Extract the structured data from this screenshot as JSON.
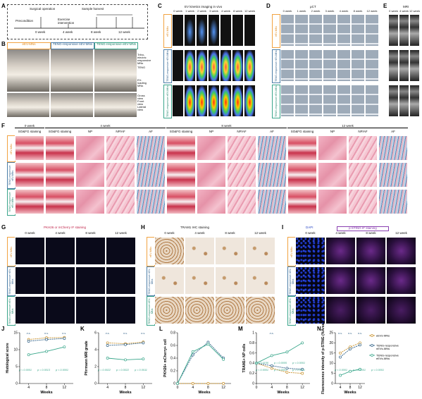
{
  "panelA": {
    "letter": "A",
    "surgical": "Surgical operation",
    "exercise": "Exercise intervention",
    "harvest": "Sample harvest",
    "precondition": "Precondition",
    "timepoints": [
      "0 week",
      "4 week",
      "8 week",
      "12 week"
    ]
  },
  "panelB": {
    "letter": "B",
    "groups": [
      "eEV-MNs",
      "TENG-responsive nEV-MNs",
      "TENG-responsive eEV-MNs"
    ],
    "notes": [
      "Tribo-electric responsive MNs",
      "TENG",
      "EV-loading MNs"
    ],
    "view_labels": [
      "Gross view",
      "Front view",
      "Lateral view"
    ]
  },
  "panelC": {
    "letter": "C",
    "title": "EV kinetics imaging in vivo",
    "columns": [
      "0 week",
      "1 week",
      "2 week",
      "3 week",
      "4 week",
      "8 week",
      "12 week"
    ]
  },
  "panelD": {
    "letter": "D",
    "title": "μCT",
    "columns": [
      "0 week",
      "1 week",
      "2 week",
      "3 week",
      "4 week",
      "8 week",
      "12 week"
    ]
  },
  "panelE": {
    "letter": "E",
    "title": "MRI",
    "columns": [
      "0 week",
      "4 week",
      "12 week"
    ]
  },
  "rowGroups": [
    "eEV-MNs",
    "TENG-responsive nEV-MNs",
    "TENG-responsive eEV-MNs"
  ],
  "panelF": {
    "letter": "F",
    "periods": [
      "0 week",
      "4 week",
      "8 week",
      "12 week"
    ],
    "sub": [
      "SO&FG staining",
      "NP",
      "NP/AF",
      "AF"
    ]
  },
  "panelG": {
    "letter": "G",
    "title": "PKH26 or mCherry IF staining",
    "columns": [
      "0 week",
      "4 week",
      "8 week",
      "12 week"
    ]
  },
  "panelH": {
    "letter": "H",
    "title": "TRAM1 IHC staining",
    "columns": [
      "0 week",
      "4 week",
      "8 week",
      "12 week"
    ]
  },
  "panelI": {
    "letter": "I",
    "title1": "DAPI",
    "title2": "p-STING IF staining",
    "columns": [
      "0 week",
      "4 week",
      "8 week",
      "12 week"
    ]
  },
  "colors": {
    "eEV": "#c8902a",
    "nEV": "#2e5f86",
    "teEV": "#38a68a",
    "orange": "#f2a341",
    "blue": "#4c7ea8",
    "green": "#3aa58b"
  },
  "chart_data": [
    {
      "panel": "J",
      "type": "line",
      "ylabel": "Histological score",
      "xlabel": "Weeks",
      "x": [
        4,
        8,
        12
      ],
      "ylim": [
        0,
        15
      ],
      "yticks": [
        0,
        5,
        10,
        15
      ],
      "series": [
        {
          "values": [
            13,
            13.5,
            13.6
          ]
        },
        {
          "values": [
            12.5,
            13,
            13.3
          ]
        },
        {
          "values": [
            8.5,
            9.5,
            10.8
          ]
        }
      ],
      "annotations": [
        "n.s.",
        "n.s.",
        "n.s.",
        "p < 0.0001",
        "p = 0.0013",
        "p < 0.0001"
      ]
    },
    {
      "panel": "K",
      "type": "line",
      "ylabel": "Pfirrmann MRI grade",
      "xlabel": "Weeks",
      "x": [
        4,
        8,
        12
      ],
      "ylim": [
        0,
        6
      ],
      "yticks": [
        0,
        2,
        4,
        6
      ],
      "series": [
        {
          "values": [
            4.8,
            4.7,
            4.9
          ]
        },
        {
          "values": [
            4.5,
            4.6,
            4.8
          ]
        },
        {
          "values": [
            3.0,
            2.8,
            2.9
          ]
        }
      ],
      "annotations": [
        "n.s.",
        "n.s.",
        "n.s.",
        "p = 0.0022",
        "p = 0.0022",
        "p = 0.0011"
      ]
    },
    {
      "panel": "L",
      "type": "line",
      "ylabel": "PKH26+ mCherry+ cell",
      "xlabel": "Weeks",
      "x": [
        0,
        4,
        8,
        12
      ],
      "ylim": [
        0,
        0.8
      ],
      "yticks": [
        0.0,
        0.2,
        0.4,
        0.6,
        0.8
      ],
      "series": [
        {
          "values": [
            0,
            0,
            0,
            0
          ]
        },
        {
          "values": [
            0,
            0.45,
            0.65,
            0.4
          ]
        },
        {
          "values": [
            0,
            0.5,
            0.62,
            0.38
          ]
        }
      ],
      "annotations": []
    },
    {
      "panel": "M",
      "type": "line",
      "ylabel": "TRAM1+ NP cells",
      "xlabel": "Weeks",
      "x": [
        0,
        4,
        8,
        12
      ],
      "ylim": [
        0,
        1.0
      ],
      "yticks": [
        0.0,
        0.2,
        0.4,
        0.6,
        0.8,
        1.0
      ],
      "series": [
        {
          "values": [
            0.4,
            0.3,
            0.22,
            0.2
          ]
        },
        {
          "values": [
            0.4,
            0.35,
            0.3,
            0.28
          ]
        },
        {
          "values": [
            0.4,
            0.55,
            0.62,
            0.8
          ]
        }
      ],
      "annotations": [
        "n.s.",
        "p < 0.0001",
        "p < 0.0001",
        "p < 0.0001",
        "p = 0.0156",
        "p = 0.0005",
        "p < 0.0001"
      ]
    },
    {
      "panel": "N",
      "type": "line",
      "ylabel": "Fluorescence intensity of p-STING (%Area)",
      "xlabel": "Weeks",
      "x": [
        4,
        8,
        12
      ],
      "ylim": [
        0,
        25
      ],
      "yticks": [
        0,
        5,
        10,
        15,
        20,
        25
      ],
      "series": [
        {
          "name": "eEVs-MNs",
          "values": [
            15,
            18,
            20
          ]
        },
        {
          "name": "TENG-responsive nEVs-MNs",
          "values": [
            13,
            17,
            19
          ]
        },
        {
          "name": "TENG-responsive eEVs-MNs",
          "values": [
            4,
            6,
            7
          ]
        }
      ],
      "annotations": [
        "n.s.",
        "n.s.",
        "n.s.",
        "p < 0.0001",
        "p < 0.0001",
        "p < 0.0001"
      ]
    }
  ]
}
